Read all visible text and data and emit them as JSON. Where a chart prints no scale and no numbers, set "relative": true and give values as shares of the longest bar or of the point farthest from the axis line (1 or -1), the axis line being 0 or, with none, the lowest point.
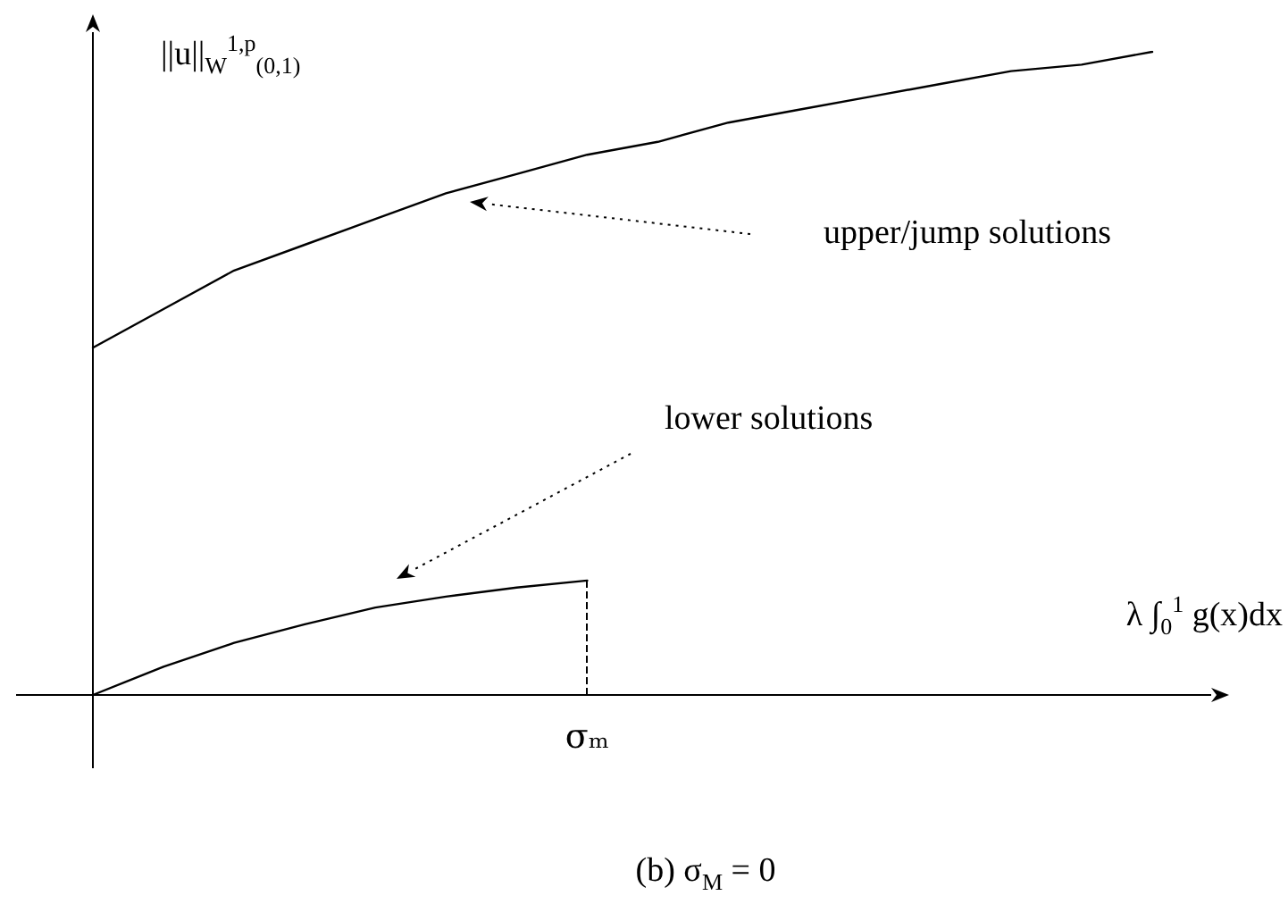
{
  "chart_data": {
    "type": "line",
    "relative": true,
    "xlabel": "λ ∫$_{0}$$^{1}$ g(x)dx",
    "ylabel": "||u||$_{W}$$^{1,p}$$_{(0,1)}$",
    "categories": [
      null,
      null,
      null,
      null,
      null,
      null,
      null,
      null,
      null,
      null,
      null,
      null,
      null,
      null,
      null,
      null
    ],
    "series": [
      {
        "color": "#000000",
        "values": [
          0.54,
          0.6,
          0.66,
          0.7,
          0.74,
          0.78,
          0.81,
          0.84,
          0.86,
          0.89,
          0.91,
          0.93,
          0.95,
          0.97,
          0.98,
          1
        ]
      },
      {
        "color": "#000000",
        "values": [
          0,
          0.044,
          0.081,
          0.11,
          0.136,
          0.153,
          0.167,
          0.178,
          null,
          null,
          null,
          null,
          null,
          null,
          null,
          null
        ]
      }
    ],
    "ref_lines": [
      {
        "axis": "x",
        "label": "σₘ",
        "line_style": "dashed"
      }
    ],
    "annotations": [
      "upper/jump solutions",
      "lower solutions",
      "(b) σ$_{M}$ = 0"
    ],
    "marker": "none"
  }
}
